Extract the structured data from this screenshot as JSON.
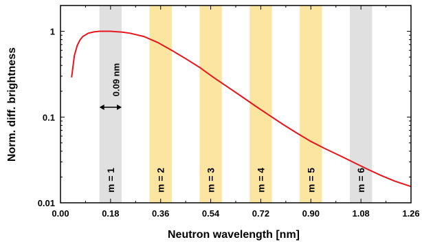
{
  "chart_data": {
    "type": "line",
    "title": "",
    "xlabel": "Neutron wavelength [nm]",
    "ylabel": "Norm. diff. brightness",
    "xlim": [
      0.0,
      1.26
    ],
    "ylim": [
      0.01,
      2.0
    ],
    "y_scale": "log",
    "grid": false,
    "x_ticks": [
      0.0,
      0.18,
      0.36,
      0.54,
      0.72,
      0.9,
      1.08,
      1.26
    ],
    "x_tick_labels": [
      "0.00",
      "0.18",
      "0.36",
      "0.54",
      "0.72",
      "0.90",
      "1.08",
      "1.26"
    ],
    "y_ticks": [
      0.01,
      0.1,
      1
    ],
    "y_tick_labels": [
      "0.01",
      "0.1",
      "1"
    ],
    "series": [
      {
        "color": "#e8141b",
        "x": [
          0.04,
          0.05,
          0.06,
          0.07,
          0.08,
          0.1,
          0.12,
          0.14,
          0.16,
          0.18,
          0.2,
          0.22,
          0.25,
          0.3,
          0.35,
          0.4,
          0.45,
          0.5,
          0.55,
          0.6,
          0.65,
          0.7,
          0.75,
          0.8,
          0.85,
          0.9,
          0.95,
          1.0,
          1.05,
          1.1,
          1.15,
          1.2,
          1.26
        ],
        "y": [
          0.29,
          0.52,
          0.68,
          0.79,
          0.87,
          0.95,
          0.985,
          1.0,
          1.0,
          1.0,
          0.99,
          0.98,
          0.95,
          0.87,
          0.74,
          0.6,
          0.48,
          0.38,
          0.29,
          0.225,
          0.175,
          0.135,
          0.105,
          0.082,
          0.065,
          0.052,
          0.043,
          0.036,
          0.03,
          0.025,
          0.021,
          0.018,
          0.0155
        ]
      }
    ],
    "bands": [
      {
        "label": "m = 1",
        "x0": 0.14,
        "x1": 0.22,
        "color": "#e0e0e0"
      },
      {
        "label": "m = 2",
        "x0": 0.32,
        "x1": 0.4,
        "color": "#fce5a0"
      },
      {
        "label": "m = 3",
        "x0": 0.5,
        "x1": 0.58,
        "color": "#fce5a0"
      },
      {
        "label": "m = 4",
        "x0": 0.68,
        "x1": 0.76,
        "color": "#fce5a0"
      },
      {
        "label": "m = 5",
        "x0": 0.86,
        "x1": 0.94,
        "color": "#fce5a0"
      },
      {
        "label": "m = 6",
        "x0": 1.04,
        "x1": 1.12,
        "color": "#e0e0e0"
      }
    ],
    "annotations": [
      {
        "text": "0.09 nm",
        "x0": 0.14,
        "x1": 0.22,
        "y": 0.13
      }
    ]
  }
}
